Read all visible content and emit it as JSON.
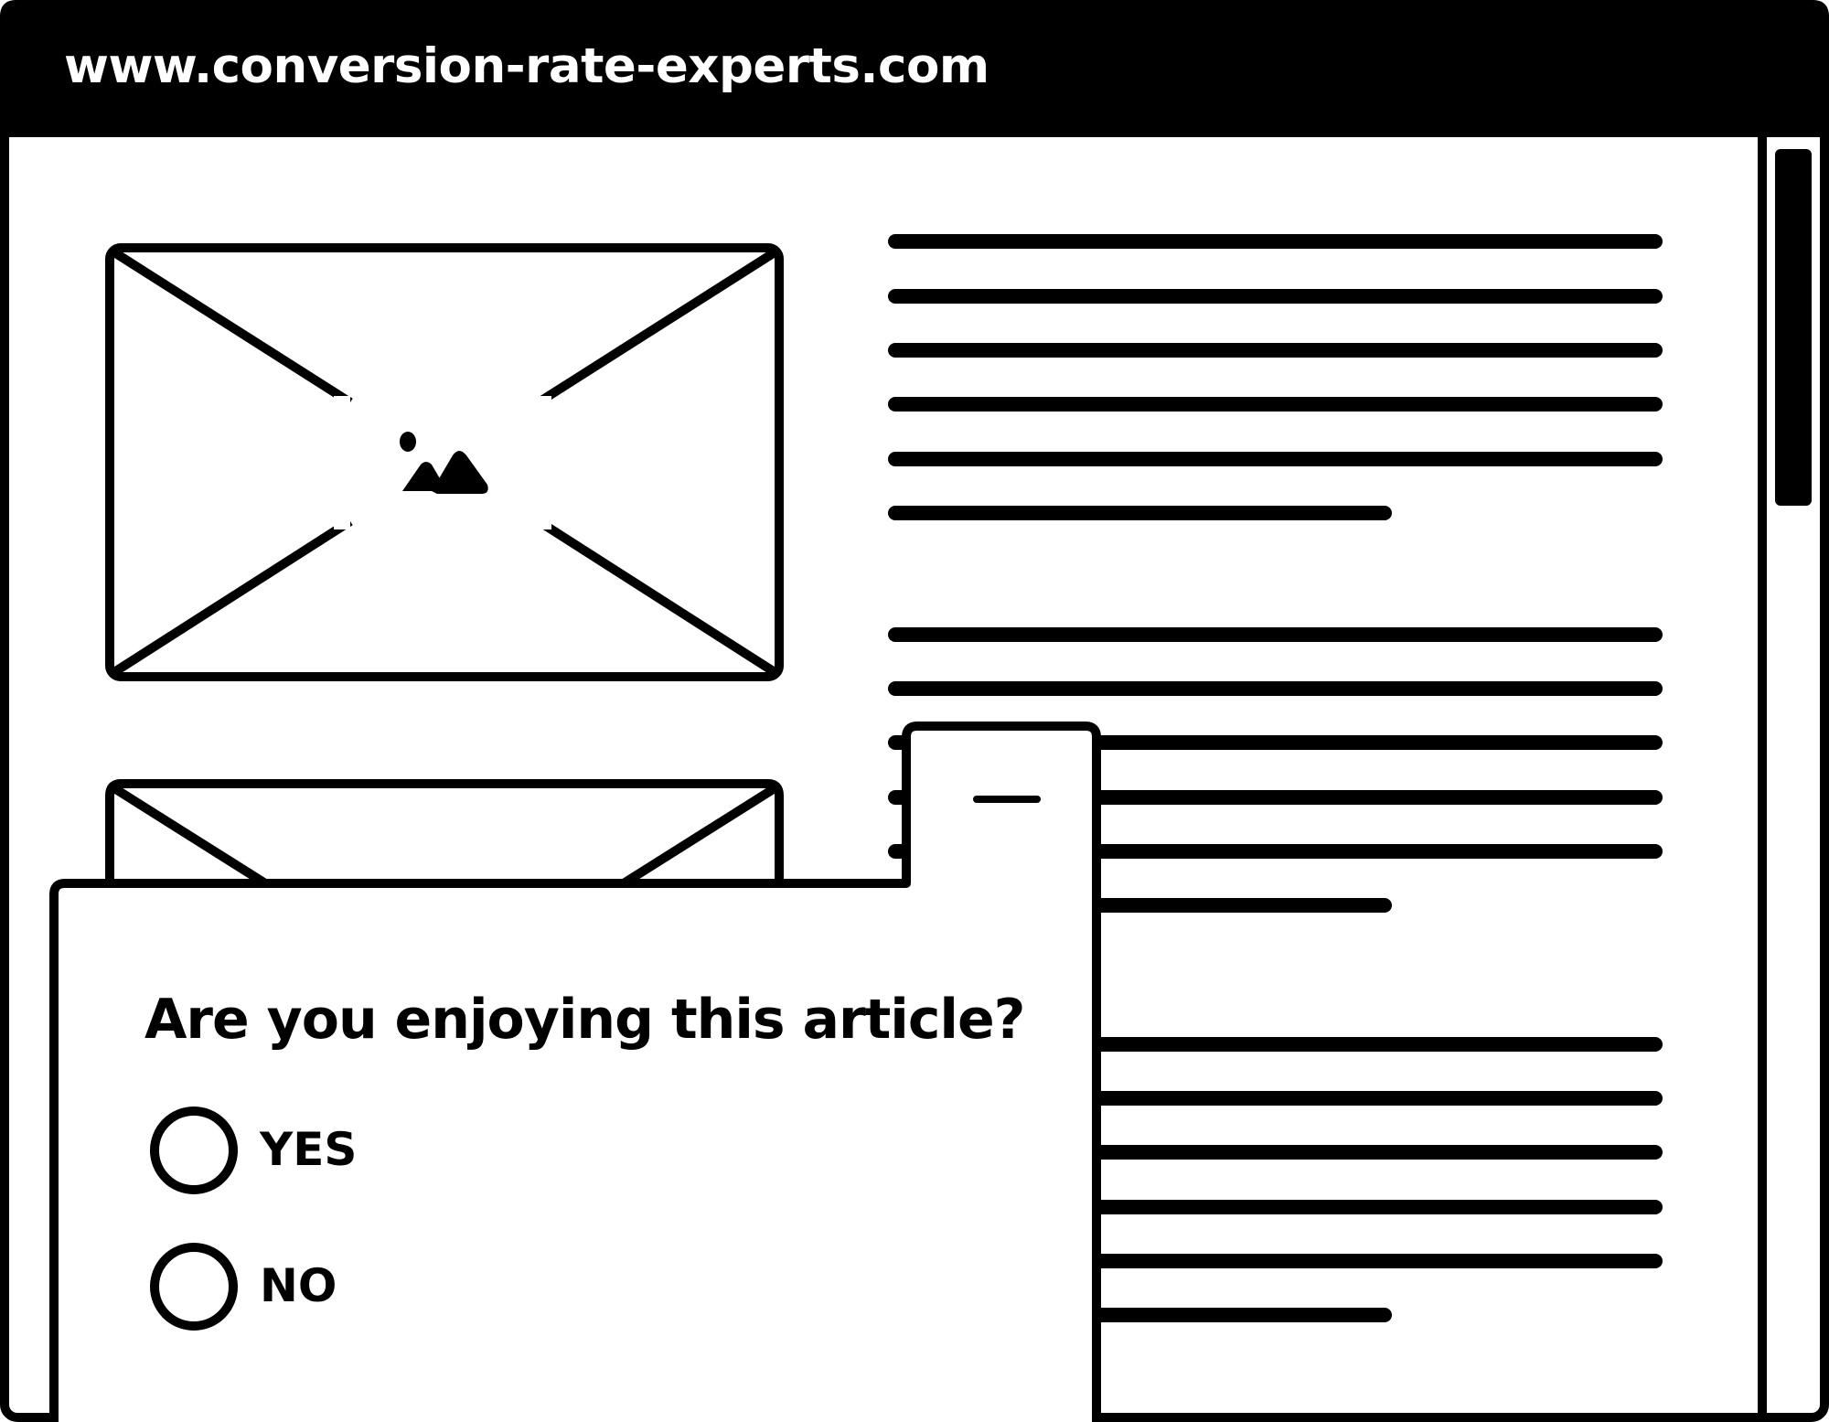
{
  "browser": {
    "url": "www.conversion-rate-experts.com"
  },
  "article": {
    "images": [
      {
        "icon": "image-placeholder-icon"
      },
      {
        "icon": "image-placeholder-icon"
      }
    ]
  },
  "survey_popup": {
    "question": "Are you enjoying this article?",
    "minimize_icon": "minus-icon",
    "options": [
      {
        "label": "YES",
        "selected": false
      },
      {
        "label": "NO",
        "selected": false
      }
    ]
  },
  "colors": {
    "stroke": "#000000",
    "background": "#ffffff",
    "titlebar": "#000000",
    "titlebar_text": "#ffffff"
  }
}
